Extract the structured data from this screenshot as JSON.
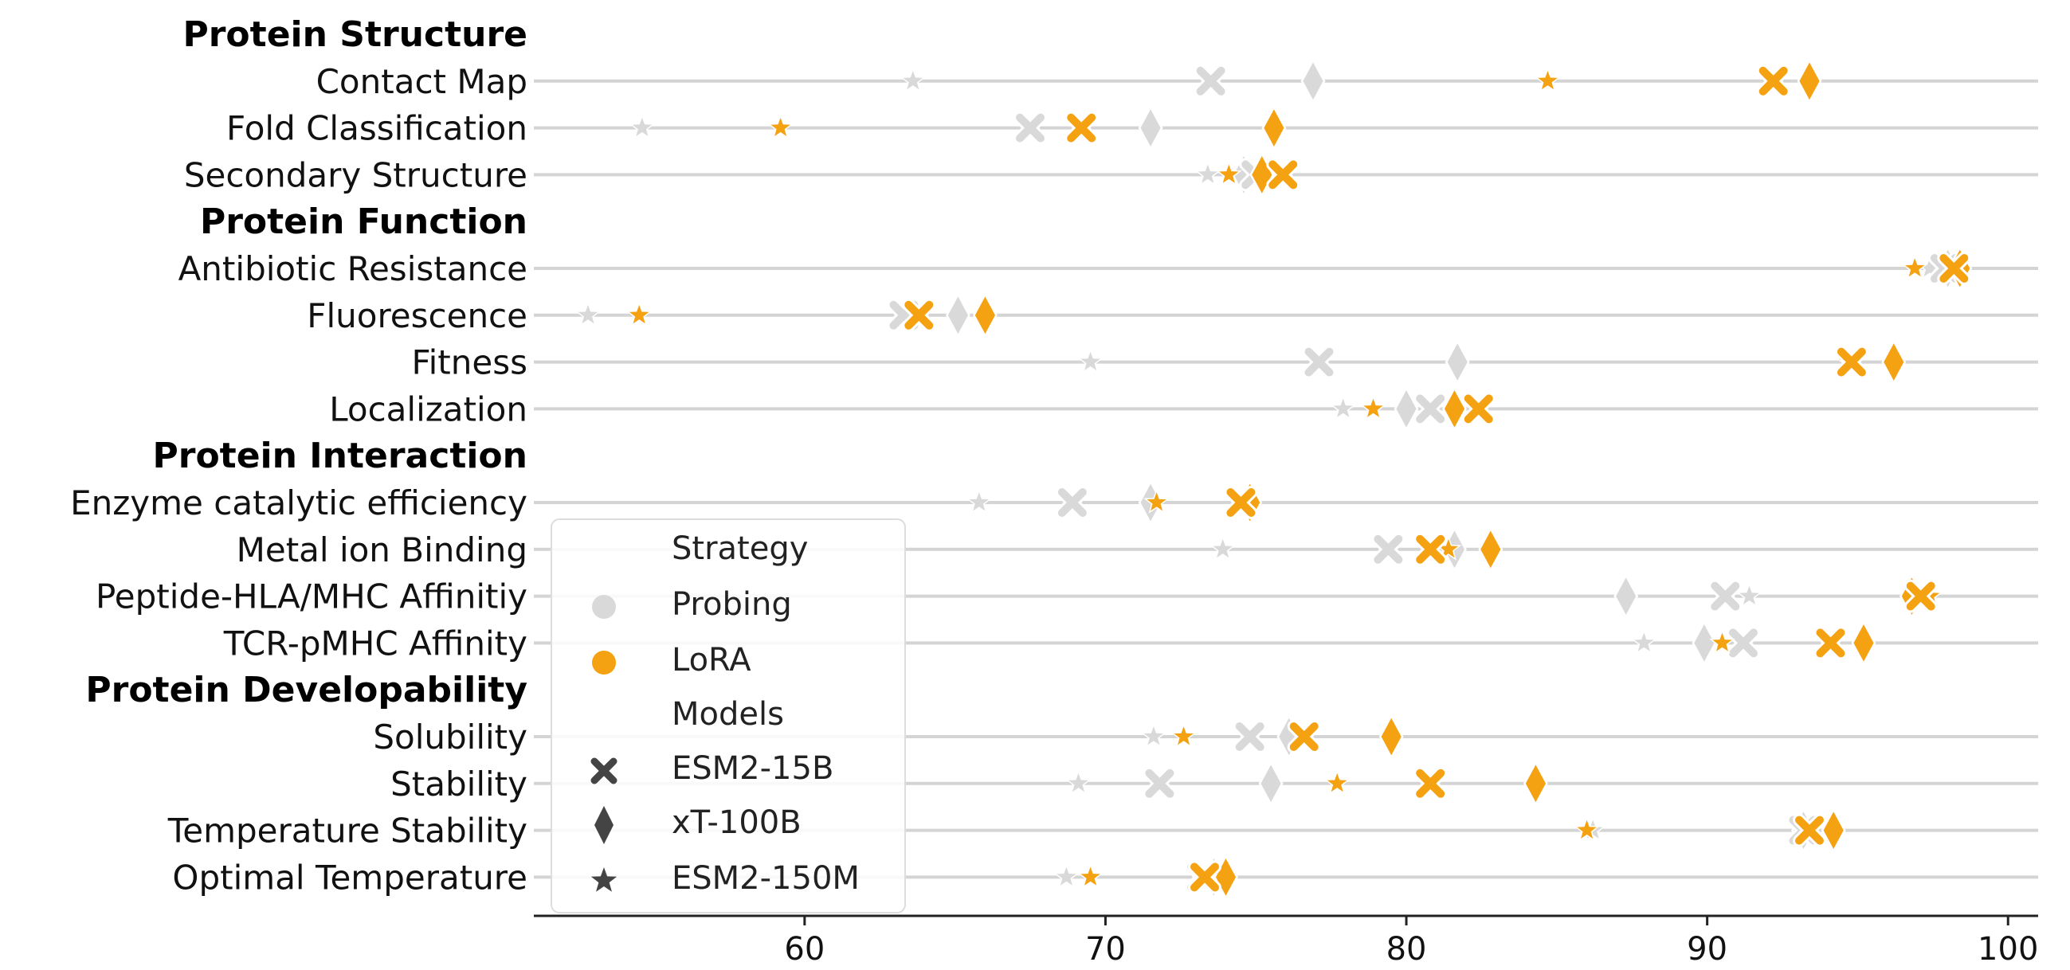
{
  "chart_data": {
    "type": "scatter",
    "orientation": "horizontal",
    "xlim": [
      51,
      101
    ],
    "x_ticks": [
      60,
      70,
      80,
      90,
      100
    ],
    "grid": "horizontal",
    "legend_placement": "lower-left",
    "colors": {
      "Probing": "#d9d9d9",
      "LoRA": "#f5a212"
    },
    "rows": [
      {
        "label": "Protein Structure",
        "group": true
      },
      {
        "label": "Contact Map"
      },
      {
        "label": "Fold Classification"
      },
      {
        "label": "Secondary Structure"
      },
      {
        "label": "Protein Function",
        "group": true
      },
      {
        "label": "Antibiotic Resistance"
      },
      {
        "label": "Fluorescence"
      },
      {
        "label": "Fitness"
      },
      {
        "label": "Localization"
      },
      {
        "label": "Protein Interaction",
        "group": true
      },
      {
        "label": "Enzyme catalytic efficiency"
      },
      {
        "label": "Metal ion Binding"
      },
      {
        "label": "Peptide-HLA/MHC Affinitiy"
      },
      {
        "label": "TCR-pMHC Affinity"
      },
      {
        "label": "Protein Developability",
        "group": true
      },
      {
        "label": "Solubility"
      },
      {
        "label": "Stability"
      },
      {
        "label": "Temperature Stability"
      },
      {
        "label": "Optimal Temperature"
      }
    ],
    "points": [
      {
        "task": "Contact Map",
        "strategy": "Probing",
        "model": "ESM2-15B",
        "x": 73.5
      },
      {
        "task": "Contact Map",
        "strategy": "Probing",
        "model": "xT-100B",
        "x": 76.9
      },
      {
        "task": "Contact Map",
        "strategy": "Probing",
        "model": "ESM2-150M",
        "x": 63.6
      },
      {
        "task": "Contact Map",
        "strategy": "LoRA",
        "model": "ESM2-15B",
        "x": 92.2
      },
      {
        "task": "Contact Map",
        "strategy": "LoRA",
        "model": "xT-100B",
        "x": 93.4
      },
      {
        "task": "Contact Map",
        "strategy": "LoRA",
        "model": "ESM2-150M",
        "x": 84.7
      },
      {
        "task": "Fold Classification",
        "strategy": "Probing",
        "model": "ESM2-15B",
        "x": 67.5
      },
      {
        "task": "Fold Classification",
        "strategy": "Probing",
        "model": "xT-100B",
        "x": 71.5
      },
      {
        "task": "Fold Classification",
        "strategy": "Probing",
        "model": "ESM2-150M",
        "x": 54.6
      },
      {
        "task": "Fold Classification",
        "strategy": "LoRA",
        "model": "ESM2-15B",
        "x": 69.2
      },
      {
        "task": "Fold Classification",
        "strategy": "LoRA",
        "model": "xT-100B",
        "x": 75.6
      },
      {
        "task": "Fold Classification",
        "strategy": "LoRA",
        "model": "ESM2-150M",
        "x": 59.2
      },
      {
        "task": "Secondary Structure",
        "strategy": "Probing",
        "model": "ESM2-15B",
        "x": 75.0
      },
      {
        "task": "Secondary Structure",
        "strategy": "Probing",
        "model": "xT-100B",
        "x": 74.6
      },
      {
        "task": "Secondary Structure",
        "strategy": "Probing",
        "model": "ESM2-150M",
        "x": 73.4
      },
      {
        "task": "Secondary Structure",
        "strategy": "LoRA",
        "model": "ESM2-15B",
        "x": 75.9
      },
      {
        "task": "Secondary Structure",
        "strategy": "LoRA",
        "model": "xT-100B",
        "x": 75.2
      },
      {
        "task": "Secondary Structure",
        "strategy": "LoRA",
        "model": "ESM2-150M",
        "x": 74.1
      },
      {
        "task": "Antibiotic Resistance",
        "strategy": "Probing",
        "model": "ESM2-15B",
        "x": 97.9
      },
      {
        "task": "Antibiotic Resistance",
        "strategy": "Probing",
        "model": "xT-100B",
        "x": 98.0
      },
      {
        "task": "Antibiotic Resistance",
        "strategy": "Probing",
        "model": "ESM2-150M",
        "x": 97.4
      },
      {
        "task": "Antibiotic Resistance",
        "strategy": "LoRA",
        "model": "ESM2-15B",
        "x": 98.2
      },
      {
        "task": "Antibiotic Resistance",
        "strategy": "LoRA",
        "model": "xT-100B",
        "x": 98.4
      },
      {
        "task": "Antibiotic Resistance",
        "strategy": "LoRA",
        "model": "ESM2-150M",
        "x": 96.9
      },
      {
        "task": "Fluorescence",
        "strategy": "Probing",
        "model": "ESM2-15B",
        "x": 63.3
      },
      {
        "task": "Fluorescence",
        "strategy": "Probing",
        "model": "xT-100B",
        "x": 65.1
      },
      {
        "task": "Fluorescence",
        "strategy": "Probing",
        "model": "ESM2-150M",
        "x": 52.8
      },
      {
        "task": "Fluorescence",
        "strategy": "LoRA",
        "model": "ESM2-15B",
        "x": 63.8
      },
      {
        "task": "Fluorescence",
        "strategy": "LoRA",
        "model": "xT-100B",
        "x": 66.0
      },
      {
        "task": "Fluorescence",
        "strategy": "LoRA",
        "model": "ESM2-150M",
        "x": 54.5
      },
      {
        "task": "Fitness",
        "strategy": "Probing",
        "model": "ESM2-15B",
        "x": 77.1
      },
      {
        "task": "Fitness",
        "strategy": "Probing",
        "model": "xT-100B",
        "x": 81.7
      },
      {
        "task": "Fitness",
        "strategy": "Probing",
        "model": "ESM2-150M",
        "x": 69.5
      },
      {
        "task": "Fitness",
        "strategy": "LoRA",
        "model": "ESM2-15B",
        "x": 94.8
      },
      {
        "task": "Fitness",
        "strategy": "LoRA",
        "model": "xT-100B",
        "x": 96.2
      },
      {
        "task": "Fitness",
        "strategy": "LoRA",
        "model": "ESM2-150M",
        "x": 94.7
      },
      {
        "task": "Localization",
        "strategy": "Probing",
        "model": "ESM2-15B",
        "x": 80.8
      },
      {
        "task": "Localization",
        "strategy": "Probing",
        "model": "xT-100B",
        "x": 80.0
      },
      {
        "task": "Localization",
        "strategy": "Probing",
        "model": "ESM2-150M",
        "x": 77.9
      },
      {
        "task": "Localization",
        "strategy": "LoRA",
        "model": "ESM2-15B",
        "x": 82.4
      },
      {
        "task": "Localization",
        "strategy": "LoRA",
        "model": "xT-100B",
        "x": 81.6
      },
      {
        "task": "Localization",
        "strategy": "LoRA",
        "model": "ESM2-150M",
        "x": 78.9
      },
      {
        "task": "Enzyme catalytic efficiency",
        "strategy": "Probing",
        "model": "ESM2-15B",
        "x": 68.9
      },
      {
        "task": "Enzyme catalytic efficiency",
        "strategy": "Probing",
        "model": "xT-100B",
        "x": 71.5
      },
      {
        "task": "Enzyme catalytic efficiency",
        "strategy": "Probing",
        "model": "ESM2-150M",
        "x": 65.8
      },
      {
        "task": "Enzyme catalytic efficiency",
        "strategy": "LoRA",
        "model": "ESM2-15B",
        "x": 74.5
      },
      {
        "task": "Enzyme catalytic efficiency",
        "strategy": "LoRA",
        "model": "xT-100B",
        "x": 74.8
      },
      {
        "task": "Enzyme catalytic efficiency",
        "strategy": "LoRA",
        "model": "ESM2-150M",
        "x": 71.7
      },
      {
        "task": "Metal ion Binding",
        "strategy": "Probing",
        "model": "ESM2-15B",
        "x": 79.4
      },
      {
        "task": "Metal ion Binding",
        "strategy": "Probing",
        "model": "xT-100B",
        "x": 81.6
      },
      {
        "task": "Metal ion Binding",
        "strategy": "Probing",
        "model": "ESM2-150M",
        "x": 73.9
      },
      {
        "task": "Metal ion Binding",
        "strategy": "LoRA",
        "model": "ESM2-15B",
        "x": 80.8
      },
      {
        "task": "Metal ion Binding",
        "strategy": "LoRA",
        "model": "xT-100B",
        "x": 82.8
      },
      {
        "task": "Metal ion Binding",
        "strategy": "LoRA",
        "model": "ESM2-150M",
        "x": 81.4
      },
      {
        "task": "Peptide-HLA/MHC Affinitiy",
        "strategy": "Probing",
        "model": "ESM2-15B",
        "x": 90.6
      },
      {
        "task": "Peptide-HLA/MHC Affinitiy",
        "strategy": "Probing",
        "model": "xT-100B",
        "x": 87.3
      },
      {
        "task": "Peptide-HLA/MHC Affinitiy",
        "strategy": "Probing",
        "model": "ESM2-150M",
        "x": 91.4
      },
      {
        "task": "Peptide-HLA/MHC Affinitiy",
        "strategy": "LoRA",
        "model": "ESM2-15B",
        "x": 97.1
      },
      {
        "task": "Peptide-HLA/MHC Affinitiy",
        "strategy": "LoRA",
        "model": "xT-100B",
        "x": 96.8
      },
      {
        "task": "Peptide-HLA/MHC Affinitiy",
        "strategy": "LoRA",
        "model": "ESM2-150M",
        "x": 97.4
      },
      {
        "task": "TCR-pMHC Affinity",
        "strategy": "Probing",
        "model": "ESM2-15B",
        "x": 91.2
      },
      {
        "task": "TCR-pMHC Affinity",
        "strategy": "Probing",
        "model": "xT-100B",
        "x": 89.9
      },
      {
        "task": "TCR-pMHC Affinity",
        "strategy": "Probing",
        "model": "ESM2-150M",
        "x": 87.9
      },
      {
        "task": "TCR-pMHC Affinity",
        "strategy": "LoRA",
        "model": "ESM2-15B",
        "x": 94.1
      },
      {
        "task": "TCR-pMHC Affinity",
        "strategy": "LoRA",
        "model": "xT-100B",
        "x": 95.2
      },
      {
        "task": "TCR-pMHC Affinity",
        "strategy": "LoRA",
        "model": "ESM2-150M",
        "x": 90.5
      },
      {
        "task": "Solubility",
        "strategy": "Probing",
        "model": "ESM2-15B",
        "x": 74.8
      },
      {
        "task": "Solubility",
        "strategy": "Probing",
        "model": "xT-100B",
        "x": 76.1
      },
      {
        "task": "Solubility",
        "strategy": "Probing",
        "model": "ESM2-150M",
        "x": 71.6
      },
      {
        "task": "Solubility",
        "strategy": "LoRA",
        "model": "ESM2-15B",
        "x": 76.6
      },
      {
        "task": "Solubility",
        "strategy": "LoRA",
        "model": "xT-100B",
        "x": 79.5
      },
      {
        "task": "Solubility",
        "strategy": "LoRA",
        "model": "ESM2-150M",
        "x": 72.6
      },
      {
        "task": "Stability",
        "strategy": "Probing",
        "model": "ESM2-15B",
        "x": 71.8
      },
      {
        "task": "Stability",
        "strategy": "Probing",
        "model": "xT-100B",
        "x": 75.5
      },
      {
        "task": "Stability",
        "strategy": "Probing",
        "model": "ESM2-150M",
        "x": 69.1
      },
      {
        "task": "Stability",
        "strategy": "LoRA",
        "model": "ESM2-15B",
        "x": 80.8
      },
      {
        "task": "Stability",
        "strategy": "LoRA",
        "model": "xT-100B",
        "x": 84.3
      },
      {
        "task": "Stability",
        "strategy": "LoRA",
        "model": "ESM2-150M",
        "x": 77.7
      },
      {
        "task": "Temperature Stability",
        "strategy": "Probing",
        "model": "ESM2-15B",
        "x": 93.2
      },
      {
        "task": "Temperature Stability",
        "strategy": "Probing",
        "model": "xT-100B",
        "x": 93.2
      },
      {
        "task": "Temperature Stability",
        "strategy": "Probing",
        "model": "ESM2-150M",
        "x": 86.2
      },
      {
        "task": "Temperature Stability",
        "strategy": "LoRA",
        "model": "ESM2-15B",
        "x": 93.4
      },
      {
        "task": "Temperature Stability",
        "strategy": "LoRA",
        "model": "xT-100B",
        "x": 94.2
      },
      {
        "task": "Temperature Stability",
        "strategy": "LoRA",
        "model": "ESM2-150M",
        "x": 86.0
      },
      {
        "task": "Optimal Temperature",
        "strategy": "Probing",
        "model": "ESM2-15B",
        "x": 73.2
      },
      {
        "task": "Optimal Temperature",
        "strategy": "Probing",
        "model": "xT-100B",
        "x": 73.6
      },
      {
        "task": "Optimal Temperature",
        "strategy": "Probing",
        "model": "ESM2-150M",
        "x": 68.7
      },
      {
        "task": "Optimal Temperature",
        "strategy": "LoRA",
        "model": "ESM2-15B",
        "x": 73.3
      },
      {
        "task": "Optimal Temperature",
        "strategy": "LoRA",
        "model": "xT-100B",
        "x": 74.0
      },
      {
        "task": "Optimal Temperature",
        "strategy": "LoRA",
        "model": "ESM2-150M",
        "x": 69.5
      }
    ],
    "legend": {
      "strategy_title": "Strategy",
      "strategies": [
        "Probing",
        "LoRA"
      ],
      "models_title": "Models",
      "models": [
        {
          "name": "ESM2-15B",
          "marker": "x-icon"
        },
        {
          "name": "xT-100B",
          "marker": "diamond-icon"
        },
        {
          "name": "ESM2-150M",
          "marker": "star-icon"
        }
      ]
    }
  }
}
